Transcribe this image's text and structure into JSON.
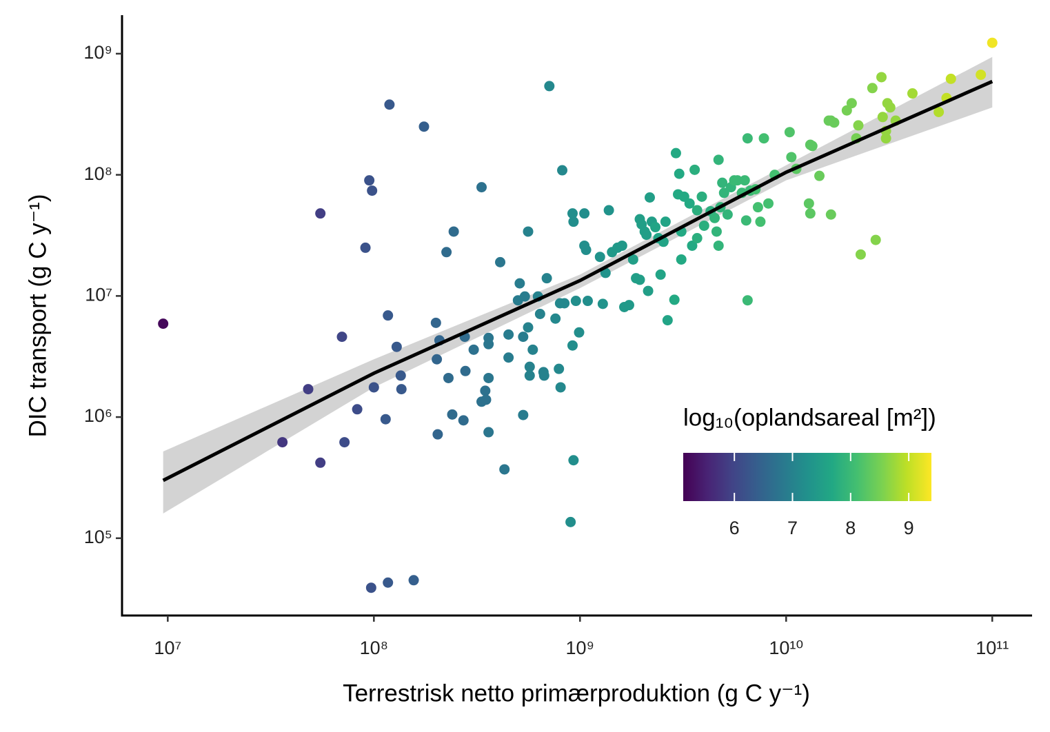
{
  "chart_data": {
    "type": "scatter",
    "x_label": "Terrestrisk netto primærproduktion (g C y⁻¹)",
    "y_label": "DIC transport (g C y⁻¹)",
    "legend_title": "log₁₀(oplandsareal [m²])",
    "log_x": true,
    "log_y": true,
    "xlim": [
      6000000.0,
      156000000000.0
    ],
    "ylim": [
      23000.0,
      2080000000.0
    ],
    "xticks": [
      {
        "value": 10000000.0,
        "label": "10⁷"
      },
      {
        "value": 100000000.0,
        "label": "10⁸"
      },
      {
        "value": 1000000000.0,
        "label": "10⁹"
      },
      {
        "value": 10000000000.0,
        "label": "10¹⁰"
      },
      {
        "value": 100000000000.0,
        "label": "10¹¹"
      }
    ],
    "yticks": [
      {
        "value": 100000.0,
        "label": "10⁵"
      },
      {
        "value": 1000000.0,
        "label": "10⁶"
      },
      {
        "value": 10000000.0,
        "label": "10⁷"
      },
      {
        "value": 100000000.0,
        "label": "10⁸"
      },
      {
        "value": 1000000000.0,
        "label": "10⁹"
      }
    ],
    "colormap": "viridis",
    "clim": [
      5.12,
      9.39
    ],
    "cticks": [
      6,
      7,
      8,
      9
    ],
    "x": [
      9500000.0,
      36000000.0,
      48000000.0,
      55000000.0,
      55000000.0,
      70000000.0,
      72000000.0,
      83000000.0,
      91000000.0,
      95000000.0,
      98000000.0,
      100000000.0,
      97000000.0,
      117000000.0,
      156000000.0,
      117000000.0,
      114000000.0,
      119000000.0,
      129000000.0,
      135000000.0,
      136000000.0,
      175000000.0,
      200000000.0,
      208000000.0,
      202000000.0,
      204000000.0,
      230000000.0,
      225000000.0,
      240000000.0,
      244000000.0,
      272000000.0,
      276000000.0,
      278000000.0,
      305000000.0,
      333000000.0,
      333000000.0,
      347000000.0,
      350000000.0,
      360000000.0,
      360000000.0,
      360000000.0,
      360000000.0,
      410000000.0,
      430000000.0,
      450000000.0,
      450000000.0,
      500000000.0,
      510000000.0,
      530000000.0,
      530000000.0,
      540000000.0,
      560000000.0,
      560000000.0,
      570000000.0,
      570000000.0,
      590000000.0,
      625000000.0,
      640000000.0,
      665000000.0,
      670000000.0,
      690000000.0,
      710000000.0,
      760000000.0,
      790000000.0,
      805000000.0,
      820000000.0,
      800000000.0,
      840000000.0,
      900000000.0,
      920000000.0,
      920000000.0,
      930000000.0,
      930000000.0,
      955000000.0,
      990000000.0,
      1050000000.0,
      1050000000.0,
      1090000000.0,
      1070000000.0,
      1250000000.0,
      1290000000.0,
      1330000000.0,
      1380000000.0,
      1430000000.0,
      1520000000.0,
      1600000000.0,
      1640000000.0,
      1730000000.0,
      1810000000.0,
      1870000000.0,
      1950000000.0,
      1950000000.0,
      1990000000.0,
      2060000000.0,
      2100000000.0,
      2180000000.0,
      2140000000.0,
      2230000000.0,
      2320000000.0,
      2400000000.0,
      2460000000.0,
      2540000000.0,
      2600000000.0,
      2660000000.0,
      2870000000.0,
      2920000000.0,
      2990000000.0,
      3030000000.0,
      3100000000.0,
      3100000000.0,
      3200000000.0,
      3400000000.0,
      3500000000.0,
      3600000000.0,
      3700000000.0,
      3700000000.0,
      3900000000.0,
      4000000000.0,
      4300000000.0,
      4500000000.0,
      4600000000.0,
      4700000000.0,
      4700000000.0,
      4800000000.0,
      4900000000.0,
      5000000000.0,
      5200000000.0,
      5400000000.0,
      5600000000.0,
      5800000000.0,
      6100000000.0,
      6300000000.0,
      6400000000.0,
      6500000000.0,
      6500000000.0,
      6700000000.0,
      7100000000.0,
      7300000000.0,
      7500000000.0,
      7800000000.0,
      8200000000.0,
      8800000000.0,
      10400000000.0,
      10600000000.0,
      11200000000.0,
      12900000000.0,
      13100000000.0,
      13100000000.0,
      13400000000.0,
      14500000000.0,
      16100000000.0,
      16500000000.0,
      16500000000.0,
      17100000000.0,
      19700000000.0,
      20800000000.0,
      22400000000.0,
      21900000000.0,
      23000000000.0,
      26200000000.0,
      27200000000.0,
      29000000000.0,
      29400000000.0,
      31000000000.0,
      32000000000.0,
      30500000000.0,
      30500000000.0,
      34000000000.0,
      41000000000.0,
      55000000000.0,
      60000000000.0,
      63000000000.0,
      88000000000.0,
      100000000000.0
    ],
    "y": [
      5900000.0,
      620000.0,
      1700000.0,
      48000000.0,
      420000.0,
      4600000.0,
      620000.0,
      1160000.0,
      25000000.0,
      90000000.0,
      74000000.0,
      1760000.0,
      39000.0,
      43000.0,
      45000.0,
      6900000.0,
      960000.0,
      380000000.0,
      3800000.0,
      2200000.0,
      1700000.0,
      250000000.0,
      6000000.0,
      4300000.0,
      3000000.0,
      720000.0,
      2100000.0,
      23000000.0,
      1050000.0,
      34000000.0,
      940000.0,
      4600000.0,
      2400000.0,
      3600000.0,
      79000000.0,
      1340000.0,
      1650000.0,
      1390000.0,
      4500000.0,
      4000000.0,
      2100000.0,
      750000.0,
      19000000.0,
      370000.0,
      4800000.0,
      3100000.0,
      9200000.0,
      12700000.0,
      4600000.0,
      1040000.0,
      9900000.0,
      34000000.0,
      5500000.0,
      2600000.0,
      2200000.0,
      3600000.0,
      9900000.0,
      7100000.0,
      2350000.0,
      2200000.0,
      14000000.0,
      540000000.0,
      6500000.0,
      2500000.0,
      1760000.0,
      109000000.0,
      8700000.0,
      8700000.0,
      136000.0,
      3900000.0,
      48000000.0,
      41000000.0,
      440000.0,
      9100000.0,
      5000000.0,
      48000000.0,
      26000000.0,
      9100000.0,
      24000000.0,
      21000000.0,
      8600000.0,
      15500000.0,
      51000000.0,
      23000000.0,
      25000000.0,
      26000000.0,
      8100000.0,
      8400000.0,
      20000000.0,
      14000000.0,
      13600000.0,
      43000000.0,
      39000000.0,
      34000000.0,
      32000000.0,
      65000000.0,
      11000000.0,
      41000000.0,
      37000000.0,
      30000000.0,
      15000000.0,
      28000000.0,
      41000000.0,
      6300000.0,
      9300000.0,
      151000000.0,
      69000000.0,
      102000000.0,
      20000000.0,
      34000000.0,
      66000000.0,
      58000000.0,
      26000000.0,
      110000000.0,
      30000000.0,
      51000000.0,
      66000000.0,
      38000000.0,
      50000000.0,
      44000000.0,
      34000000.0,
      26000000.0,
      133000000.0,
      54000000.0,
      86000000.0,
      71000000.0,
      47000000.0,
      79000000.0,
      90000000.0,
      90000000.0,
      71000000.0,
      90000000.0,
      42000000.0,
      9200000.0,
      200000000.0,
      74000000.0,
      76000000.0,
      54000000.0,
      41000000.0,
      200000000.0,
      58000000.0,
      100000000.0,
      225000000.0,
      140000000.0,
      112000000.0,
      58000000.0,
      48000000.0,
      177000000.0,
      173000000.0,
      98000000.0,
      280000000.0,
      47000000.0,
      280000000.0,
      270000000.0,
      340000000.0,
      390000000.0,
      256000000.0,
      200000000.0,
      22000000.0,
      520000000.0,
      29000000.0,
      640000000.0,
      300000000.0,
      390000000.0,
      360000000.0,
      230000000.0,
      200000000.0,
      280000000.0,
      470000000.0,
      330000000.0,
      430000000.0,
      620000000.0,
      670000000.0,
      1230000000.0
    ],
    "color_values": [
      5.2,
      5.8,
      5.9,
      5.9,
      5.9,
      6.0,
      6.1,
      6.1,
      6.2,
      6.2,
      6.2,
      6.2,
      6.2,
      6.3,
      6.4,
      6.3,
      6.3,
      6.3,
      6.3,
      6.3,
      6.3,
      6.4,
      6.5,
      6.5,
      6.5,
      6.5,
      6.6,
      6.6,
      6.6,
      6.6,
      6.6,
      6.6,
      6.6,
      6.7,
      6.7,
      6.7,
      6.7,
      6.7,
      6.8,
      6.8,
      6.8,
      6.8,
      6.8,
      6.8,
      6.9,
      6.9,
      6.9,
      6.9,
      6.9,
      6.9,
      6.9,
      7.0,
      7.0,
      7.0,
      7.0,
      7.0,
      7.0,
      7.0,
      7.0,
      7.0,
      7.0,
      7.1,
      7.1,
      7.1,
      7.1,
      7.1,
      7.1,
      7.1,
      7.2,
      7.2,
      7.2,
      7.2,
      7.2,
      7.2,
      7.2,
      7.2,
      7.2,
      7.2,
      7.2,
      7.3,
      7.3,
      7.3,
      7.3,
      7.4,
      7.4,
      7.4,
      7.4,
      7.4,
      7.5,
      7.5,
      7.5,
      7.5,
      7.5,
      7.5,
      7.5,
      7.5,
      7.5,
      7.5,
      7.6,
      7.6,
      7.6,
      7.6,
      7.6,
      7.6,
      7.7,
      7.7,
      7.7,
      7.7,
      7.7,
      7.7,
      7.7,
      7.7,
      7.7,
      7.8,
      7.8,
      7.8,
      7.8,
      7.8,
      7.8,
      7.9,
      7.9,
      7.9,
      7.9,
      7.9,
      7.9,
      7.9,
      7.9,
      7.9,
      8.0,
      8.0,
      8.0,
      8.0,
      8.0,
      8.0,
      8.0,
      8.0,
      8.1,
      8.1,
      8.1,
      8.1,
      8.1,
      8.1,
      8.2,
      8.2,
      8.3,
      8.3,
      8.3,
      8.3,
      8.3,
      8.4,
      8.4,
      8.4,
      8.4,
      8.4,
      8.5,
      8.5,
      8.6,
      8.5,
      8.6,
      8.6,
      8.6,
      8.7,
      8.7,
      8.7,
      8.7,
      8.7,
      8.7,
      8.7,
      8.8,
      8.9,
      9.0,
      9.0,
      9.1,
      9.3
    ],
    "fit": {
      "color": "#000000",
      "band_color": "#d3d3d3",
      "x": [
        9500000.0,
        100000000.0,
        1000000000.0,
        10000000000.0,
        100000000000.0
      ],
      "y": [
        300000.0,
        2300000.0,
        13400000.0,
        105000000.0,
        590000000.0
      ],
      "lower": [
        160000.0,
        1760000.0,
        11600000.0,
        90000000.0,
        360000000.0
      ],
      "upper": [
        520000.0,
        3000000.0,
        15000000.0,
        120000000.0,
        940000000.0
      ]
    }
  }
}
